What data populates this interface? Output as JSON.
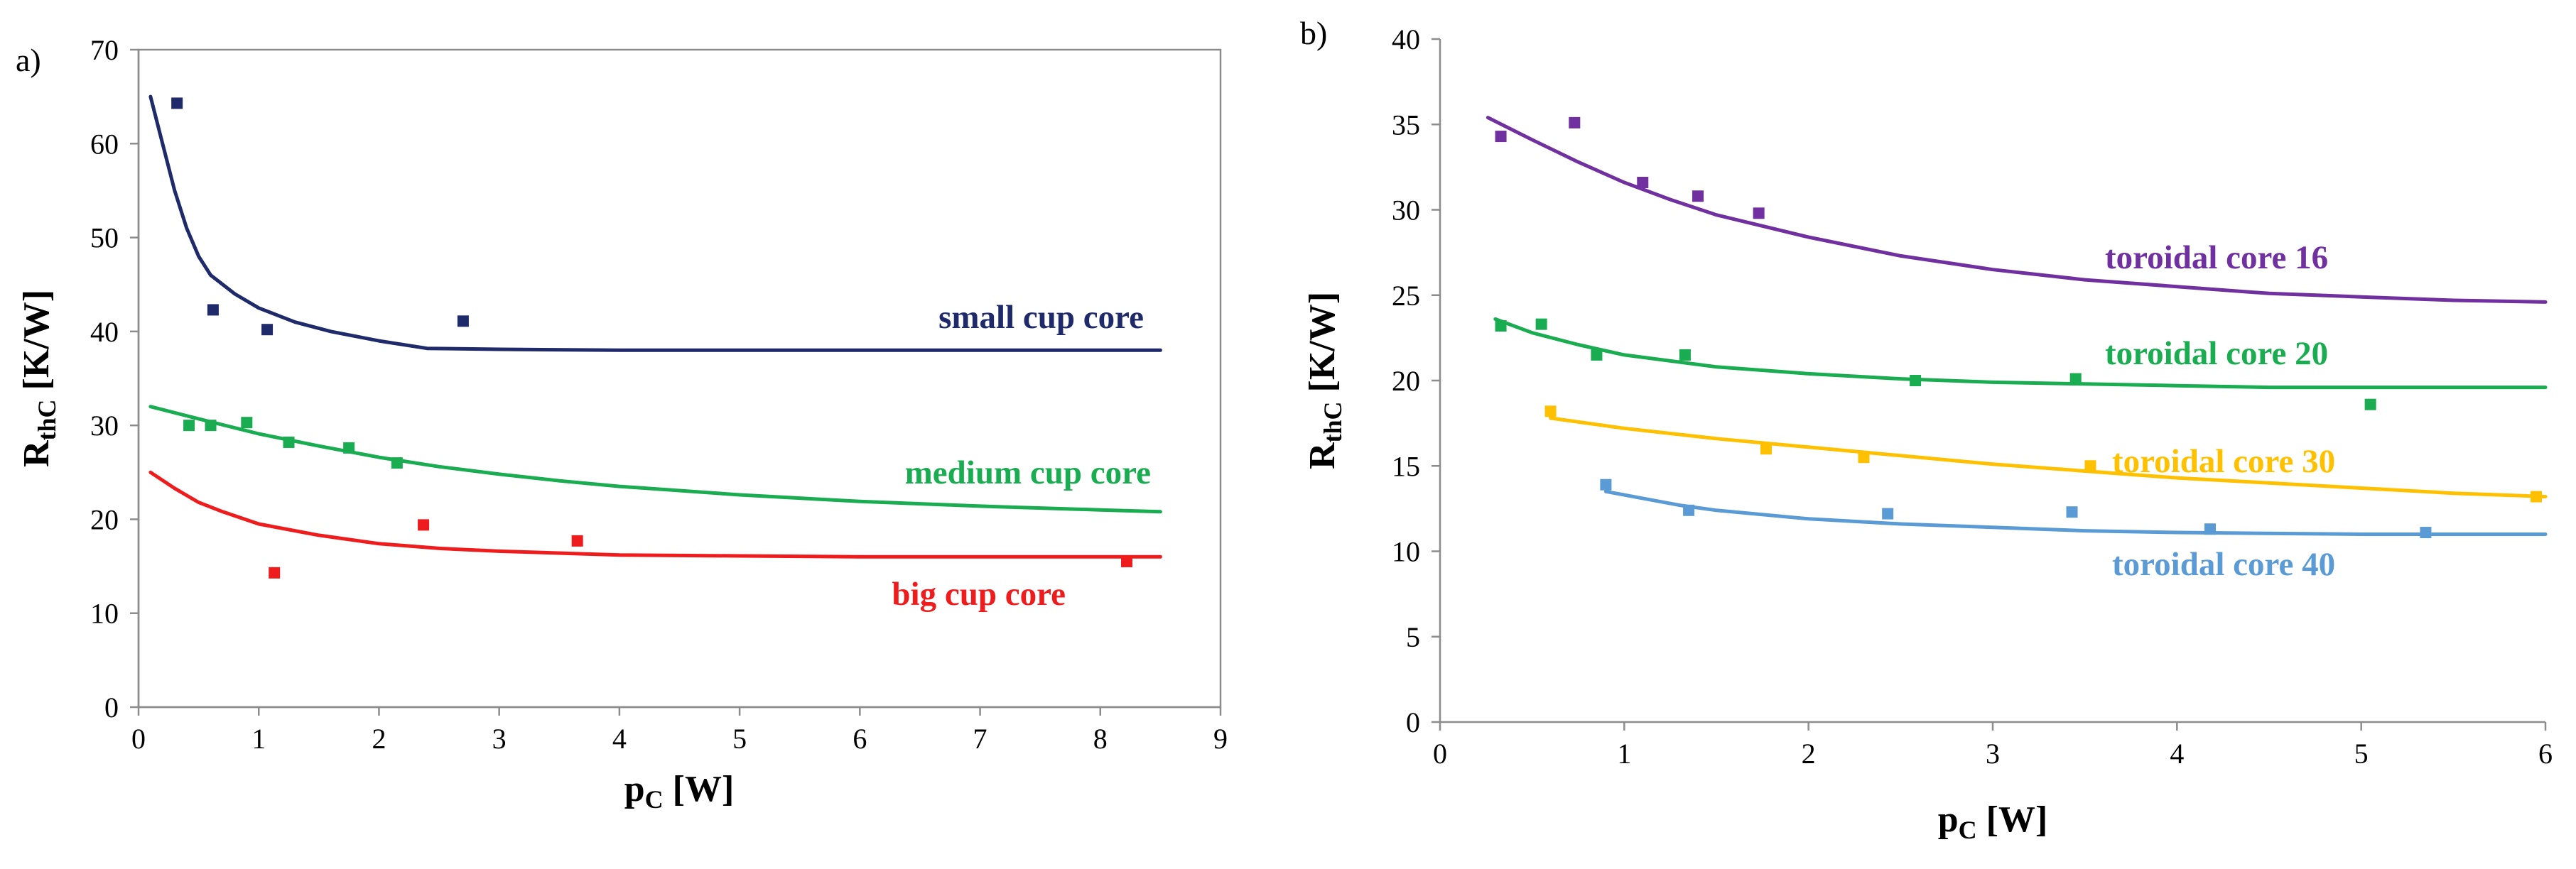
{
  "chart_data": [
    {
      "type": "scatter",
      "panel_label": "a)",
      "xlabel_main": "p",
      "xlabel_sub": "C",
      "xlabel_unit": " [W]",
      "ylabel_main": "R",
      "ylabel_sub": "thC",
      "ylabel_unit": " [K/W]",
      "xlim": [
        0,
        9
      ],
      "ylim": [
        0,
        70
      ],
      "xticks": [
        0,
        1,
        2,
        3,
        4,
        5,
        6,
        7,
        8,
        9
      ],
      "yticks": [
        0,
        10,
        20,
        30,
        40,
        50,
        60,
        70
      ],
      "grid": false,
      "frame": true,
      "series": [
        {
          "name": "small cup core",
          "color": "#1f2a6b",
          "points": [
            [
              0.32,
              64.3
            ],
            [
              0.62,
              42.3
            ],
            [
              1.07,
              40.2
            ],
            [
              2.7,
              41.1
            ]
          ],
          "curve": [
            [
              0.1,
              65
            ],
            [
              0.2,
              60
            ],
            [
              0.3,
              55
            ],
            [
              0.4,
              51
            ],
            [
              0.5,
              48
            ],
            [
              0.6,
              46
            ],
            [
              0.8,
              44
            ],
            [
              1.0,
              42.5
            ],
            [
              1.3,
              41
            ],
            [
              1.6,
              40
            ],
            [
              2.0,
              39
            ],
            [
              2.4,
              38.2
            ],
            [
              3,
              38.1
            ],
            [
              4,
              38
            ],
            [
              6,
              38
            ],
            [
              8.5,
              38
            ]
          ]
        },
        {
          "name": "medium cup core",
          "color": "#1aac50",
          "points": [
            [
              0.42,
              30.0
            ],
            [
              0.6,
              30.0
            ],
            [
              0.9,
              30.3
            ],
            [
              1.25,
              28.2
            ],
            [
              1.75,
              27.6
            ],
            [
              2.15,
              26.0
            ]
          ],
          "curve": [
            [
              0.1,
              32
            ],
            [
              0.5,
              30.7
            ],
            [
              1,
              29.1
            ],
            [
              1.5,
              27.8
            ],
            [
              2,
              26.6
            ],
            [
              2.5,
              25.6
            ],
            [
              3,
              24.8
            ],
            [
              3.5,
              24.1
            ],
            [
              4,
              23.5
            ],
            [
              5,
              22.6
            ],
            [
              6,
              21.9
            ],
            [
              7,
              21.4
            ],
            [
              8,
              21
            ],
            [
              8.5,
              20.8
            ]
          ]
        },
        {
          "name": "big cup core",
          "color": "#ee1c1c",
          "points": [
            [
              1.13,
              14.3
            ],
            [
              2.37,
              19.4
            ],
            [
              3.65,
              17.7
            ],
            [
              8.22,
              15.5
            ]
          ],
          "curve": [
            [
              0.1,
              25
            ],
            [
              0.3,
              23.3
            ],
            [
              0.5,
              21.8
            ],
            [
              0.7,
              20.8
            ],
            [
              1,
              19.5
            ],
            [
              1.5,
              18.3
            ],
            [
              2,
              17.4
            ],
            [
              2.5,
              16.9
            ],
            [
              3,
              16.6
            ],
            [
              4,
              16.2
            ],
            [
              5,
              16.1
            ],
            [
              6,
              16
            ],
            [
              8.5,
              16
            ]
          ]
        }
      ]
    },
    {
      "type": "scatter",
      "panel_label": "b)",
      "xlabel_main": "p",
      "xlabel_sub": "C",
      "xlabel_unit": " [W]",
      "ylabel_main": "R",
      "ylabel_sub": "thC",
      "ylabel_unit": " [K/W]",
      "xlim": [
        0,
        6
      ],
      "ylim": [
        0,
        40
      ],
      "xticks": [
        0,
        1,
        2,
        3,
        4,
        5,
        6
      ],
      "yticks": [
        0,
        5,
        10,
        15,
        20,
        25,
        30,
        35,
        40
      ],
      "grid": false,
      "frame": false,
      "series": [
        {
          "name": "toroidal core 16",
          "color": "#7030a0",
          "points": [
            [
              0.33,
              34.3
            ],
            [
              0.73,
              35.1
            ],
            [
              1.1,
              31.6
            ],
            [
              1.4,
              30.8
            ],
            [
              1.73,
              29.8
            ]
          ],
          "curve": [
            [
              0.26,
              35.4
            ],
            [
              0.5,
              34.1
            ],
            [
              0.75,
              32.8
            ],
            [
              1,
              31.6
            ],
            [
              1.25,
              30.6
            ],
            [
              1.5,
              29.7
            ],
            [
              2,
              28.4
            ],
            [
              2.5,
              27.3
            ],
            [
              3,
              26.5
            ],
            [
              3.5,
              25.9
            ],
            [
              4,
              25.5
            ],
            [
              4.5,
              25.1
            ],
            [
              5,
              24.9
            ],
            [
              5.5,
              24.7
            ],
            [
              6,
              24.6
            ]
          ]
        },
        {
          "name": "toroidal core 20",
          "color": "#1aac50",
          "points": [
            [
              0.33,
              23.2
            ],
            [
              0.55,
              23.3
            ],
            [
              0.85,
              21.5
            ],
            [
              1.33,
              21.5
            ],
            [
              2.58,
              20.0
            ],
            [
              3.45,
              20.1
            ],
            [
              5.05,
              18.6
            ]
          ],
          "curve": [
            [
              0.3,
              23.6
            ],
            [
              0.5,
              22.8
            ],
            [
              0.75,
              22.1
            ],
            [
              1,
              21.5
            ],
            [
              1.5,
              20.8
            ],
            [
              2,
              20.4
            ],
            [
              2.5,
              20.1
            ],
            [
              3,
              19.9
            ],
            [
              3.5,
              19.8
            ],
            [
              4,
              19.7
            ],
            [
              4.5,
              19.6
            ],
            [
              5,
              19.6
            ],
            [
              6,
              19.6
            ]
          ]
        },
        {
          "name": "toroidal core 30",
          "color": "#ffc000",
          "points": [
            [
              0.6,
              18.2
            ],
            [
              1.77,
              16.0
            ],
            [
              2.3,
              15.5
            ],
            [
              3.53,
              15.0
            ],
            [
              5.95,
              13.2
            ]
          ],
          "curve": [
            [
              0.6,
              17.8
            ],
            [
              1,
              17.2
            ],
            [
              1.5,
              16.6
            ],
            [
              2,
              16.1
            ],
            [
              2.5,
              15.6
            ],
            [
              3,
              15.1
            ],
            [
              3.5,
              14.7
            ],
            [
              4,
              14.3
            ],
            [
              4.5,
              14
            ],
            [
              5,
              13.7
            ],
            [
              5.5,
              13.4
            ],
            [
              6,
              13.2
            ]
          ]
        },
        {
          "name": "toroidal core 40",
          "color": "#5b9bd5",
          "points": [
            [
              0.9,
              13.9
            ],
            [
              1.35,
              12.4
            ],
            [
              2.43,
              12.2
            ],
            [
              3.43,
              12.3
            ],
            [
              4.18,
              11.3
            ],
            [
              5.35,
              11.1
            ]
          ],
          "curve": [
            [
              0.9,
              13.5
            ],
            [
              1.1,
              13.1
            ],
            [
              1.3,
              12.7
            ],
            [
              1.5,
              12.4
            ],
            [
              2,
              11.9
            ],
            [
              2.5,
              11.6
            ],
            [
              3,
              11.4
            ],
            [
              3.5,
              11.2
            ],
            [
              4,
              11.1
            ],
            [
              5,
              11
            ],
            [
              6,
              11
            ]
          ]
        }
      ]
    }
  ]
}
